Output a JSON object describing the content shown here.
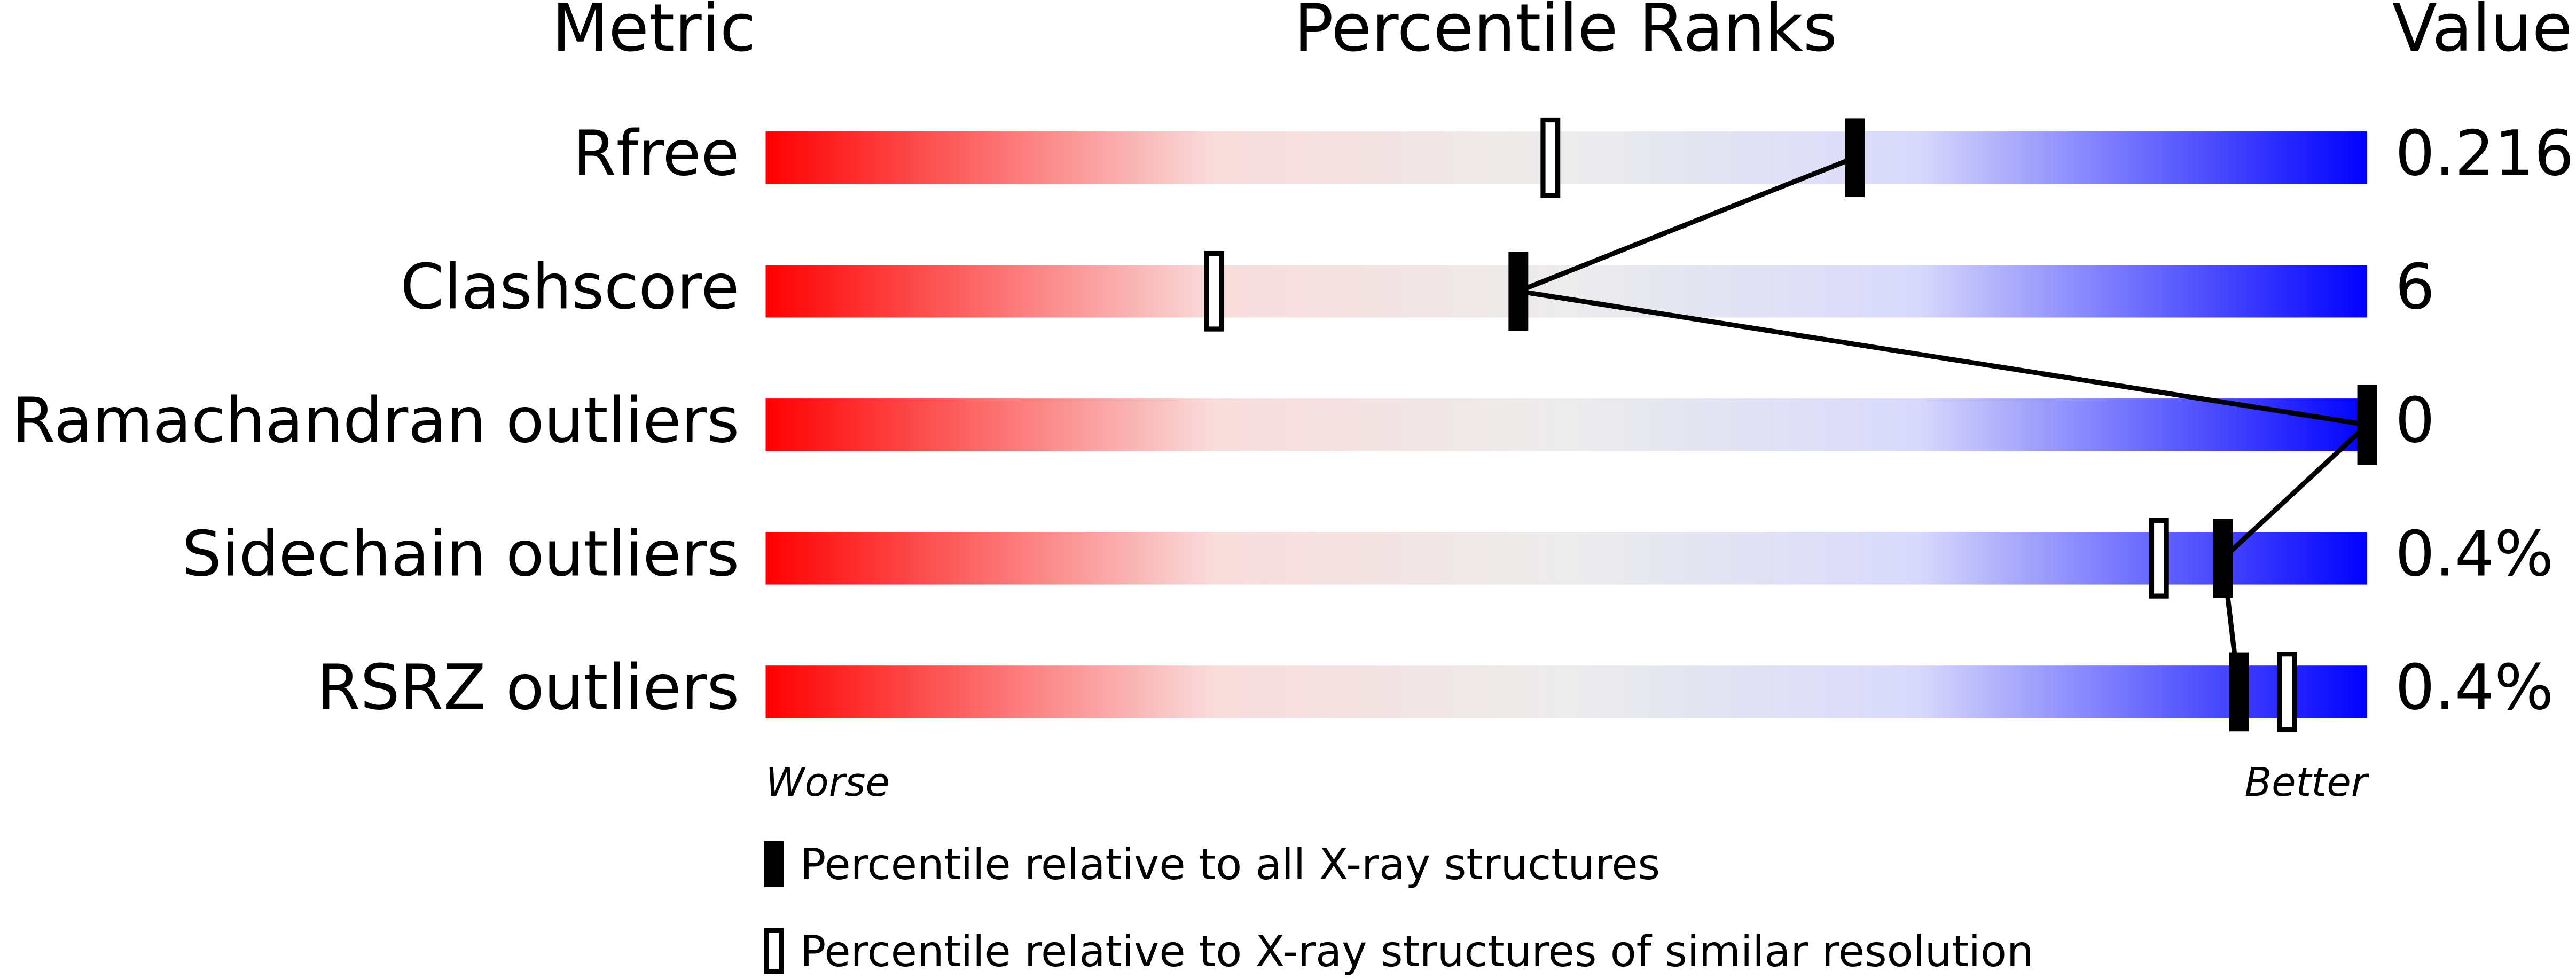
{
  "chart_data": {
    "type": "percentile",
    "column_headers": [
      "Metric",
      "Percentile Ranks",
      "Value"
    ],
    "categories": [
      "Rfree",
      "Clashscore",
      "Ramachandran outliers",
      "Sidechain outliers",
      "RSRZ outliers"
    ],
    "metric_values": [
      "0.216",
      "6",
      "0",
      "0.4%",
      "0.4%"
    ],
    "xlim": [
      0,
      100
    ],
    "axis_labels": [
      "Worse",
      "Better"
    ],
    "series": [
      {
        "name": "Percentile relative to all X-ray structures",
        "color": "#000000",
        "values": [
          68,
          47,
          100,
          91,
          92
        ]
      },
      {
        "name": "Percentile relative to X-ray structures of similar resolution",
        "color": "#000000",
        "values": [
          49,
          28,
          100,
          87,
          95
        ]
      }
    ]
  }
}
